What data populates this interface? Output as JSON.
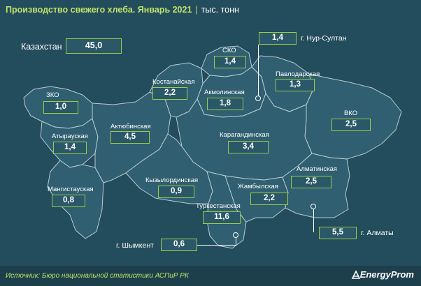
{
  "title": "Производство свежего хлеба. Январь 2021",
  "unit": "тыс. тонн",
  "total": {
    "name": "Казахстан",
    "value": "45,0"
  },
  "regions": [
    {
      "id": "zko",
      "name": "ЗКО",
      "value": "1,0"
    },
    {
      "id": "atyrau",
      "name": "Атырауская",
      "value": "1,4"
    },
    {
      "id": "mangystau",
      "name": "Мангистауская",
      "value": "0,8"
    },
    {
      "id": "aktobe",
      "name": "Актюбинская",
      "value": "4,5"
    },
    {
      "id": "kostanay",
      "name": "Костанайская",
      "value": "2,2"
    },
    {
      "id": "sko",
      "name": "СКО",
      "value": "1,4"
    },
    {
      "id": "akmola",
      "name": "Акмолинская",
      "value": "1,8"
    },
    {
      "id": "pavlodar",
      "name": "Павлодарская",
      "value": "1,3"
    },
    {
      "id": "vko",
      "name": "ВКО",
      "value": "2,5"
    },
    {
      "id": "karaganda",
      "name": "Карагандинская",
      "value": "3,4"
    },
    {
      "id": "kyzylorda",
      "name": "Кызылординская",
      "value": "0,9"
    },
    {
      "id": "zhambyl",
      "name": "Жамбылская",
      "value": "2,2"
    },
    {
      "id": "almaty-region",
      "name": "Алматинская",
      "value": "2,5"
    },
    {
      "id": "turkestan",
      "name": "Туркестанская",
      "value": "11,6"
    }
  ],
  "cities": [
    {
      "id": "nur-sultan",
      "name": "г. Нур-Султан",
      "value": "1,4"
    },
    {
      "id": "shymkent",
      "name": "г. Шымкент",
      "value": "0,6"
    },
    {
      "id": "almaty",
      "name": "г. Алматы",
      "value": "5,5"
    }
  ],
  "footer": {
    "source": "Источник: Бюро национальной  статистики АСПиР РК",
    "brand": "EnergyProm"
  },
  "colors": {
    "background": "#234c5c",
    "region_fill": "#2f5f70",
    "accent": "#9ccc4a",
    "title": "#bfe36a"
  }
}
